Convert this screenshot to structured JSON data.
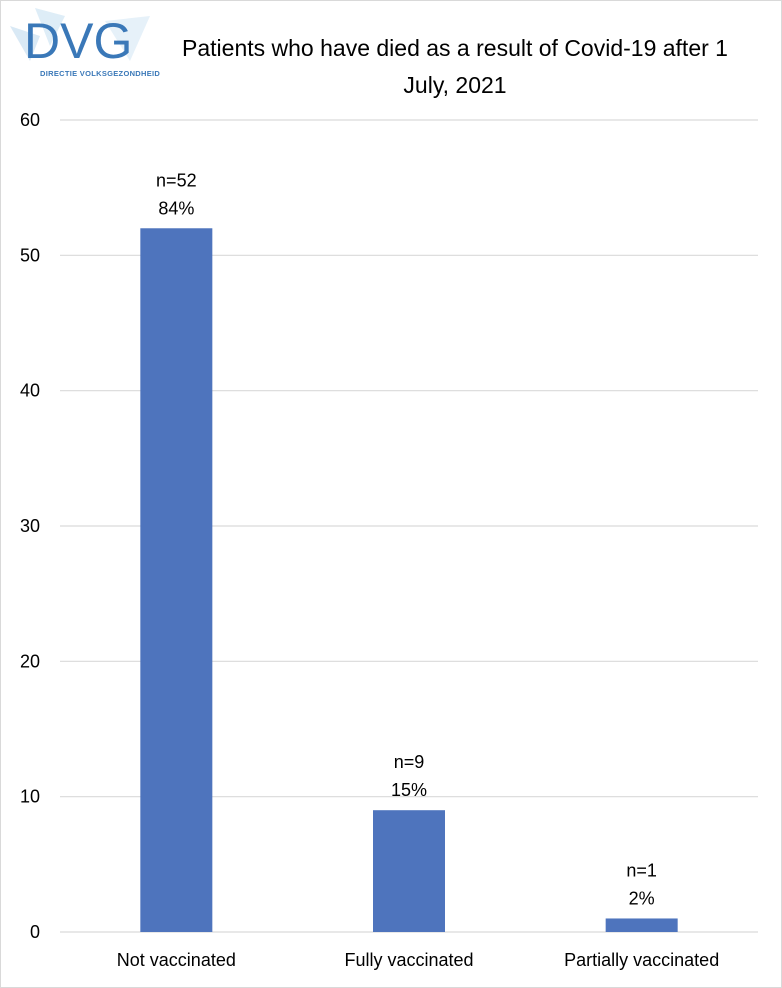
{
  "logo": {
    "text": "DVG",
    "caption": "DIRECTIE VOLKSGEZONDHEID",
    "color": "#3a78b8"
  },
  "chart_data": {
    "type": "bar",
    "title": "Patients who have died as a result of Covid-19 after 1 July, 2021",
    "categories": [
      "Not vaccinated",
      "Fully vaccinated",
      "Partially vaccinated"
    ],
    "values": [
      52,
      9,
      1
    ],
    "data_labels": [
      [
        "n=52",
        "84%"
      ],
      [
        "n=9",
        "15%"
      ],
      [
        "n=1",
        "2%"
      ]
    ],
    "y_ticks": [
      0,
      10,
      20,
      30,
      40,
      50,
      60
    ],
    "ylim": [
      0,
      60
    ],
    "xlabel": "",
    "ylabel": "",
    "grid": true,
    "bar_color": "#4e74bd",
    "grid_color": "#d9d9d9"
  }
}
